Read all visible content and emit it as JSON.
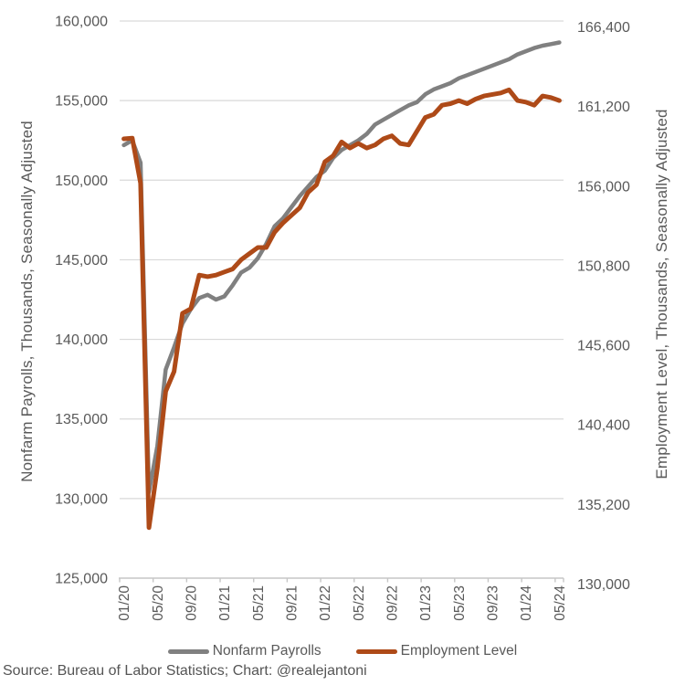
{
  "chart_data": {
    "type": "line",
    "title": "",
    "grid": true,
    "legend_position": "bottom",
    "x": {
      "tick_every": 4,
      "labels": [
        "01/20",
        "02/20",
        "03/20",
        "04/20",
        "05/20",
        "06/20",
        "07/20",
        "08/20",
        "09/20",
        "10/20",
        "11/20",
        "12/20",
        "01/21",
        "02/21",
        "03/21",
        "04/21",
        "05/21",
        "06/21",
        "07/21",
        "08/21",
        "09/21",
        "10/21",
        "11/21",
        "12/21",
        "01/22",
        "02/22",
        "03/22",
        "04/22",
        "05/22",
        "06/22",
        "07/22",
        "08/22",
        "09/22",
        "10/22",
        "11/22",
        "12/22",
        "01/23",
        "02/23",
        "03/23",
        "04/23",
        "05/23",
        "06/23",
        "07/23",
        "08/23",
        "09/23",
        "10/23",
        "11/23",
        "12/23",
        "01/24",
        "02/24",
        "03/24",
        "04/24",
        "05/24"
      ]
    },
    "y_left": {
      "title": "Nonfarm Payrolls, Thousands, Seasonally Adjusted",
      "min": 125000,
      "max": 160000,
      "step": 5000,
      "ticks": [
        160000,
        155000,
        150000,
        145000,
        140000,
        135000,
        130000,
        125000
      ]
    },
    "y_right": {
      "title": "Employment Level, Thousands, Seasonally Adjusted",
      "min": 130000,
      "max": 166400,
      "step": 5200,
      "ticks": [
        166400,
        161200,
        156000,
        150800,
        145600,
        140400,
        135200,
        130000
      ]
    },
    "series": [
      {
        "name": "Nonfarm Payrolls",
        "axis": "left",
        "color": "#808080",
        "width": 4.5,
        "values": [
          152200,
          152500,
          151100,
          130400,
          133300,
          138100,
          139500,
          141000,
          141900,
          142600,
          142800,
          142500,
          142700,
          143400,
          144200,
          144500,
          145100,
          146000,
          147100,
          147600,
          148300,
          149000,
          149600,
          150200,
          150600,
          151400,
          151900,
          152200,
          152500,
          152900,
          153500,
          153800,
          154100,
          154400,
          154700,
          154900,
          155400,
          155700,
          155900,
          156100,
          156400,
          156600,
          156800,
          157000,
          157200,
          157400,
          157600,
          157900,
          158100,
          158300,
          158450,
          158550,
          158650
        ]
      },
      {
        "name": "Employment Level",
        "axis": "right",
        "color": "#AE4A18",
        "width": 5,
        "values": [
          158700,
          158750,
          155800,
          133300,
          137200,
          142200,
          143500,
          147300,
          147600,
          149800,
          149700,
          149800,
          150000,
          150200,
          150800,
          151200,
          151600,
          151600,
          152600,
          153200,
          153700,
          154200,
          155200,
          155700,
          157200,
          157600,
          158500,
          158100,
          158400,
          158100,
          158300,
          158700,
          158900,
          158400,
          158300,
          159200,
          160100,
          160300,
          160900,
          161000,
          161200,
          161000,
          161300,
          161500,
          161600,
          161700,
          161900,
          161200,
          161100,
          160900,
          161500,
          161400,
          161200
        ]
      }
    ],
    "style": {
      "gridline_color": "#D9D9D9",
      "axis_line_color": "#C6C6C6",
      "tick_label_color": "#595959",
      "tick_font_size": 16,
      "x_tick_font_size": 15.5
    }
  },
  "footer": {
    "source": "Source: Bureau of Labor Statistics; Chart: @realejantoni"
  }
}
